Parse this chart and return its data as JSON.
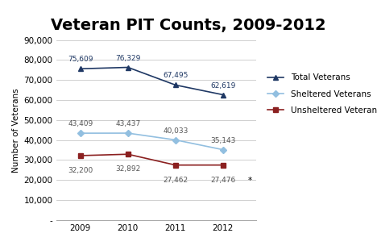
{
  "title": "Veteran PIT Counts, 2009-2012",
  "years": [
    2009,
    2010,
    2011,
    2012
  ],
  "total_veterans": [
    75609,
    76329,
    67495,
    62619
  ],
  "sheltered_veterans": [
    43409,
    43437,
    40033,
    35143
  ],
  "unsheltered_veterans": [
    32200,
    32892,
    27462,
    27476
  ],
  "total_color": "#1f3864",
  "sheltered_color": "#92bfe0",
  "unsheltered_color": "#8b2020",
  "ylabel": "Number of Veterans",
  "ylim_min": 0,
  "ylim_max": 90000,
  "ytick_step": 10000,
  "legend_labels": [
    "Total Veterans",
    "Sheltered Veterans",
    "Unsheltered Veterans"
  ],
  "background_color": "#ffffff",
  "grid_color": "#c8c8c8",
  "title_fontsize": 14,
  "axis_fontsize": 7.5,
  "label_fontsize": 6.5,
  "legend_fontsize": 7.5,
  "note": "*",
  "labels_total": [
    "75,609",
    "76,329",
    "67,495",
    "62,619"
  ],
  "labels_sheltered": [
    "43,409",
    "43,437",
    "40,033",
    "35,143"
  ],
  "labels_unsheltered": [
    "32,200",
    "32,892",
    "27,462",
    "27,476"
  ]
}
